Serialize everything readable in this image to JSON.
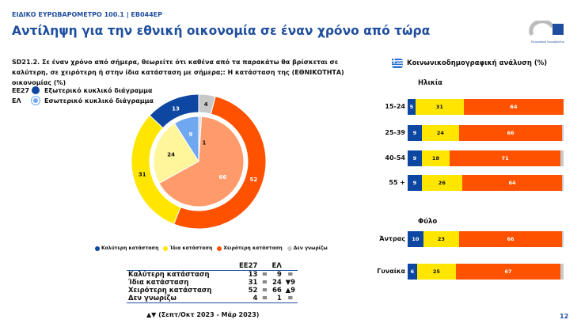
{
  "header": {
    "supertitle": "ΕΙΔΙΚΟ ΕΥΡΩΒΑΡΟΜΕΤΡΟ 100.1 | EB044EP",
    "title": "Αντίληψη για την εθνική οικονομία σε έναν χρόνο από τώρα",
    "logo_text": "Ευρωπαϊκό Κοινοβούλιο"
  },
  "question": "SD21.2. Σε έναν χρόνο από σήμερα, θεωρείτε ότι καθένα από τα παρακάτω θα βρίσκεται σε καλύτερη, σε χειρότερη ή στην ίδια κατάσταση με σήμερα;: Η κατάσταση της (ΕΘΝΙΚΟΤΗΤΑ) οικονομίας (%)",
  "ring_legend": [
    {
      "code": "ΕΕ27",
      "label": "Εξωτερικό κυκλικό διάγραμμα"
    },
    {
      "code": "ΕΛ",
      "label": "Εσωτερικό κυκλικό διάγραμμα"
    }
  ],
  "socio_title": "Κοινωνικοδημογραφική ανάλυση (%)",
  "page_number": "12",
  "colors": {
    "better": "#0d47a1",
    "same": "#ffe600",
    "worse": "#ff5200",
    "dk": "#c8c8c8",
    "better_inner": "#6fa8f0",
    "same_inner": "#fff59a",
    "worse_inner": "#ff9a6a",
    "dk_inner": "#dcdcdc",
    "brand": "#1f4e9e"
  },
  "chart_data": [
    {
      "type": "pie",
      "categories": [
        "Καλύτερη κατάσταση",
        "Ίδια κατάσταση",
        "Χειρότερη κατάσταση",
        "Δεν γνωρίζω"
      ],
      "series": [
        {
          "name": "ΕΕ27",
          "values": [
            13,
            31,
            52,
            4
          ]
        },
        {
          "name": "ΕΛ",
          "values": [
            9,
            24,
            66,
            1
          ]
        }
      ]
    },
    {
      "type": "table",
      "columns": [
        "",
        "ΕΕ27",
        "",
        "ΕΛ",
        ""
      ],
      "rows": [
        [
          "Καλύτερη κατάσταση",
          "13",
          "=",
          "9",
          "="
        ],
        [
          "Ίδια κατάσταση",
          "31",
          "=",
          "24",
          "▼9"
        ],
        [
          "Χειρότερη κατάσταση",
          "52",
          "=",
          "66",
          "▲9"
        ],
        [
          "Δεν γνωρίζω",
          "4",
          "=",
          "1",
          "="
        ]
      ],
      "note": "▲▼ (Σεπτ/Οκτ 2023 - Μάρ 2023)"
    },
    {
      "type": "bar",
      "stacked": true,
      "orientation": "horizontal",
      "groups": [
        {
          "title": "Ηλικία",
          "categories": [
            "15-24",
            "25-39",
            "40-54",
            "55 +"
          ]
        },
        {
          "title": "Φύλο",
          "categories": [
            "Άντρας",
            "Γυναίκα"
          ]
        }
      ],
      "series": [
        {
          "name": "Καλύτερη κατάσταση",
          "values": [
            5,
            9,
            9,
            9,
            10,
            6
          ]
        },
        {
          "name": "Ίδια κατάσταση",
          "values": [
            31,
            24,
            18,
            26,
            23,
            25
          ]
        },
        {
          "name": "Χειρότερη κατάσταση",
          "values": [
            64,
            66,
            71,
            64,
            66,
            67
          ]
        },
        {
          "name": "Δεν γνωρίζω",
          "values": [
            0,
            1,
            2,
            1,
            1,
            2
          ]
        }
      ]
    }
  ]
}
